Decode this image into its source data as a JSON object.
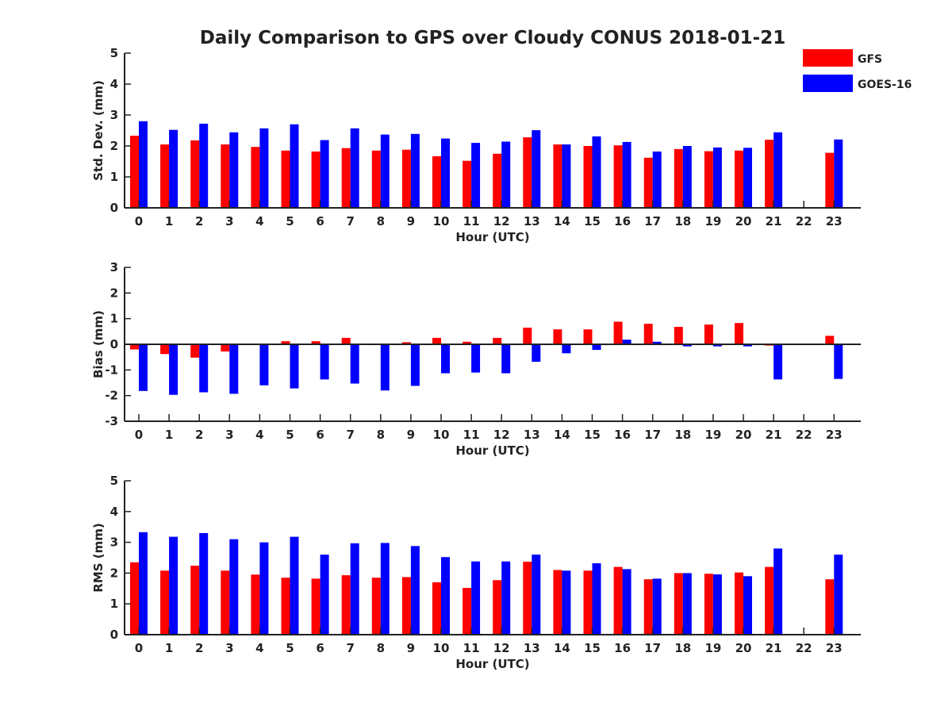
{
  "figure": {
    "title": "Daily Comparison to GPS over Cloudy CONUS 2018-01-21"
  },
  "legend": {
    "placement": "top-right",
    "entries": [
      {
        "label": "GFS",
        "color": "#ff0000"
      },
      {
        "label": "GOES-16",
        "color": "#0000ff"
      }
    ]
  },
  "chart_data": [
    {
      "type": "bar",
      "ylabel": "Std. Dev. (mm)",
      "xlabel": "Hour (UTC)",
      "ylim": [
        0,
        5
      ],
      "yticks": [
        0,
        1,
        2,
        3,
        4,
        5
      ],
      "categories": [
        "0",
        "1",
        "2",
        "3",
        "4",
        "5",
        "6",
        "7",
        "8",
        "9",
        "10",
        "11",
        "12",
        "13",
        "14",
        "15",
        "16",
        "17",
        "18",
        "19",
        "20",
        "21",
        "22",
        "23"
      ],
      "series": [
        {
          "name": "GFS",
          "color": "#ff0000",
          "values": [
            2.33,
            2.05,
            2.18,
            2.05,
            1.97,
            1.85,
            1.82,
            1.93,
            1.85,
            1.88,
            1.67,
            1.52,
            1.75,
            2.28,
            2.05,
            2.0,
            2.02,
            1.62,
            1.9,
            1.83,
            1.85,
            2.2,
            null,
            1.78
          ]
        },
        {
          "name": "GOES-16",
          "color": "#0000ff",
          "values": [
            2.8,
            2.52,
            2.72,
            2.44,
            2.57,
            2.7,
            2.19,
            2.57,
            2.37,
            2.39,
            2.24,
            2.1,
            2.14,
            2.51,
            2.05,
            2.31,
            2.13,
            1.82,
            2.0,
            1.95,
            1.94,
            2.44,
            null,
            2.21
          ]
        }
      ]
    },
    {
      "type": "bar",
      "ylabel": "Bias (mm)",
      "xlabel": "Hour (UTC)",
      "ylim": [
        -3,
        3
      ],
      "yticks": [
        -3,
        -2,
        -1,
        0,
        1,
        2,
        3
      ],
      "categories": [
        "0",
        "1",
        "2",
        "3",
        "4",
        "5",
        "6",
        "7",
        "8",
        "9",
        "10",
        "11",
        "12",
        "13",
        "14",
        "15",
        "16",
        "17",
        "18",
        "19",
        "20",
        "21",
        "22",
        "23"
      ],
      "series": [
        {
          "name": "GFS",
          "color": "#ff0000",
          "values": [
            -0.2,
            -0.38,
            -0.52,
            -0.28,
            -0.02,
            0.12,
            0.12,
            0.25,
            -0.02,
            0.08,
            0.25,
            0.1,
            0.25,
            0.65,
            0.58,
            0.58,
            0.88,
            0.8,
            0.68,
            0.77,
            0.83,
            -0.05,
            null,
            0.33
          ]
        },
        {
          "name": "GOES-16",
          "color": "#0000ff",
          "values": [
            -1.82,
            -1.97,
            -1.87,
            -1.93,
            -1.6,
            -1.72,
            -1.37,
            -1.53,
            -1.8,
            -1.62,
            -1.13,
            -1.1,
            -1.13,
            -0.68,
            -0.35,
            -0.22,
            0.18,
            0.1,
            -0.08,
            -0.08,
            -0.08,
            -1.37,
            null,
            -1.35
          ]
        }
      ]
    },
    {
      "type": "bar",
      "ylabel": "RMS (mm)",
      "xlabel": "Hour (UTC)",
      "ylim": [
        0,
        5
      ],
      "yticks": [
        0,
        1,
        2,
        3,
        4,
        5
      ],
      "categories": [
        "0",
        "1",
        "2",
        "3",
        "4",
        "5",
        "6",
        "7",
        "8",
        "9",
        "10",
        "11",
        "12",
        "13",
        "14",
        "15",
        "16",
        "17",
        "18",
        "19",
        "20",
        "21",
        "22",
        "23"
      ],
      "series": [
        {
          "name": "GFS",
          "color": "#ff0000",
          "values": [
            2.35,
            2.08,
            2.24,
            2.08,
            1.95,
            1.85,
            1.82,
            1.93,
            1.85,
            1.87,
            1.7,
            1.52,
            1.77,
            2.37,
            2.1,
            2.08,
            2.2,
            1.8,
            2.0,
            1.98,
            2.02,
            2.2,
            null,
            1.8
          ]
        },
        {
          "name": "GOES-16",
          "color": "#0000ff",
          "values": [
            3.33,
            3.18,
            3.3,
            3.1,
            3.0,
            3.18,
            2.6,
            2.97,
            2.98,
            2.88,
            2.52,
            2.38,
            2.38,
            2.6,
            2.08,
            2.32,
            2.13,
            1.82,
            2.0,
            1.96,
            1.9,
            2.8,
            null,
            2.6
          ]
        }
      ]
    }
  ]
}
